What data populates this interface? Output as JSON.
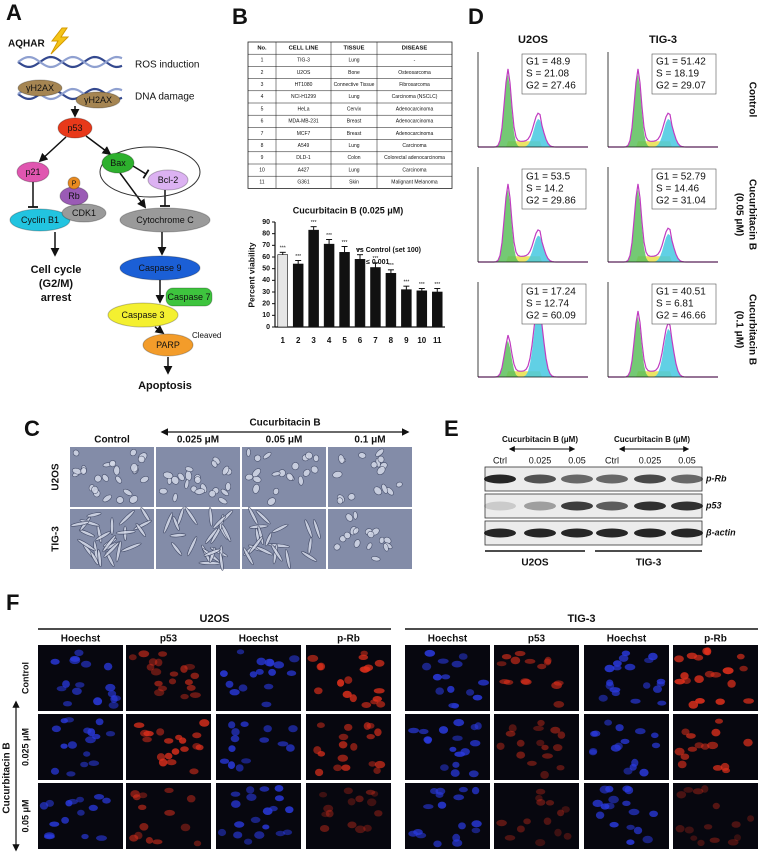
{
  "panel_a": {
    "label": "A",
    "treatment": "AQHAR",
    "ros": "ROS induction",
    "dna_damage": "DNA damage",
    "nodes": {
      "h2ax_1": "γH2AX",
      "h2ax_2": "γH2AX",
      "p53": "p53",
      "p21": "p21",
      "rb": "Rb",
      "phospho": "P",
      "cdk1": "CDK1",
      "cyclin_b1": "Cyclin B1",
      "bax": "Bax",
      "bcl2": "Bcl-2",
      "cytochrome_c": "Cytochrome C",
      "caspase9": "Caspase 9",
      "caspase7": "Caspase 7",
      "caspase3": "Caspase 3",
      "parp": "PARP"
    },
    "cleaved": "Cleaved",
    "arrest": [
      "Cell cycle",
      "(G2/M)",
      "arrest"
    ],
    "apoptosis": "Apoptosis"
  },
  "panel_b": {
    "label": "B",
    "table": {
      "header": [
        "No.",
        "CELL LINE",
        "TISSUE",
        "DISEASE"
      ],
      "rows": [
        [
          "1",
          "TIG-3",
          "Lung",
          "-"
        ],
        [
          "2",
          "U2OS",
          "Bone",
          "Osteosarcoma"
        ],
        [
          "3",
          "HT1080",
          "Connective Tissue",
          "Fibrosarcoma"
        ],
        [
          "4",
          "NCI-H1299",
          "Lung",
          "Carcinoma (NSCLC)"
        ],
        [
          "5",
          "HeLa",
          "Cervix",
          "Adenocarcinoma"
        ],
        [
          "6",
          "MDA-MB-231",
          "Breast",
          "Adenocarcinoma"
        ],
        [
          "7",
          "MCF7",
          "Breast",
          "Adenocarcinoma"
        ],
        [
          "8",
          "A549",
          "Lung",
          "Carcinoma"
        ],
        [
          "9",
          "DLD-1",
          "Colon",
          "Colorectal adenocarcinoma"
        ],
        [
          "10",
          "A427",
          "Lung",
          "Carcinoma"
        ],
        [
          "11",
          "G361",
          "Skin",
          "Malignant Melanoma"
        ]
      ]
    }
  },
  "chart_data": {
    "type": "bar",
    "title": "Cucurbitacin B (0.025 μM)",
    "y_label": "Percent viability",
    "categories": [
      "1",
      "2",
      "3",
      "4",
      "5",
      "6",
      "7",
      "8",
      "9",
      "10",
      "11"
    ],
    "values": [
      62,
      54,
      83,
      71,
      64,
      58,
      51,
      46,
      32,
      31,
      30
    ],
    "errors": [
      2,
      3,
      3,
      4,
      5,
      4,
      4,
      3,
      3,
      2,
      3
    ],
    "significance": [
      "***",
      "***",
      "***",
      "***",
      "***",
      "***",
      "***",
      "***",
      "***",
      "***",
      "***"
    ],
    "colors": [
      "#e6e6e6",
      "#111111",
      "#111111",
      "#111111",
      "#111111",
      "#111111",
      "#111111",
      "#111111",
      "#111111",
      "#111111",
      "#111111"
    ],
    "ylim": [
      0,
      90
    ],
    "yticks": [
      0,
      10,
      20,
      30,
      40,
      50,
      60,
      70,
      80,
      90
    ],
    "annotations": [
      "vs Control (set 100)",
      "*** ≤ 0.001"
    ]
  },
  "panel_d": {
    "label": "D",
    "columns": [
      "U2OS",
      "TIG-3"
    ],
    "rows": [
      [
        "Control"
      ],
      [
        "Cucurbitacin B",
        "(0.05 μM)"
      ],
      [
        "Cucurbitacin B",
        "(0.1 μM)"
      ]
    ],
    "stats": [
      [
        [
          "G1 = 48.9",
          "S = 21.08",
          "G2 = 27.46"
        ],
        [
          "G1 = 51.42",
          "S = 18.19",
          "G2 = 29.07"
        ]
      ],
      [
        [
          "G1 = 53.5",
          "S = 14.2",
          "G2 = 29.86"
        ],
        [
          "G1 = 52.79",
          "S = 14.46",
          "G2 = 31.04"
        ]
      ],
      [
        [
          "G1 = 17.24",
          "S = 12.74",
          "G2 = 60.09"
        ],
        [
          "G1 = 40.51",
          "S = 6.81",
          "G2 = 46.66"
        ]
      ]
    ]
  },
  "panel_c": {
    "label": "C",
    "treatment": "Cucurbitacin B",
    "columns": [
      "Control",
      "0.025 μM",
      "0.05 μM",
      "0.1 μM"
    ],
    "rows": [
      "U2OS",
      "TIG-3"
    ]
  },
  "panel_e": {
    "label": "E",
    "groups": [
      {
        "treatment": "Cucurbitacin B (μM)",
        "cell_line": "U2OS"
      },
      {
        "treatment": "Cucurbitacin B (μM)",
        "cell_line": "TIG-3"
      }
    ],
    "lanes": [
      "Ctrl",
      "0.025",
      "0.05",
      "Ctrl",
      "0.025",
      "0.05"
    ],
    "proteins": [
      "p-Rb",
      "p53",
      "β-actin"
    ]
  },
  "panel_f": {
    "label": "F",
    "groups": [
      "U2OS",
      "TIG-3"
    ],
    "columns": [
      "Hoechst",
      "p53",
      "Hoechst",
      "p-Rb",
      "Hoechst",
      "p53",
      "Hoechst",
      "p-Rb"
    ],
    "treatment": "Cucurbitacin B",
    "rows": [
      "Control",
      "0.025 μM",
      "0.05 μM"
    ]
  }
}
